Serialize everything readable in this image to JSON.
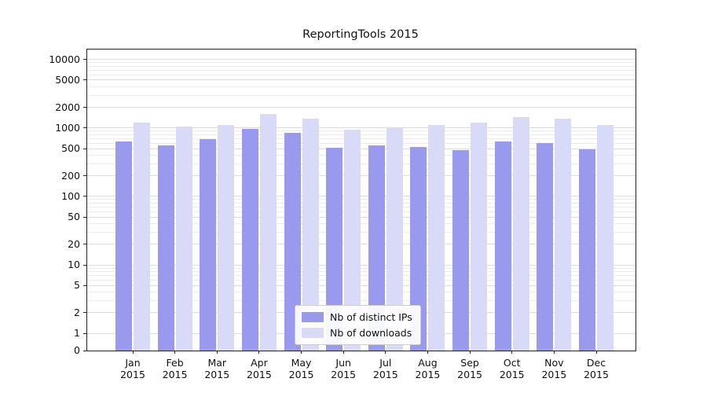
{
  "chart_data": {
    "type": "bar",
    "title": "ReportingTools 2015",
    "categories": [
      "Jan 2015",
      "Feb 2015",
      "Mar 2015",
      "Apr 2015",
      "May 2015",
      "Jun 2015",
      "Jul 2015",
      "Aug 2015",
      "Sep 2015",
      "Oct 2015",
      "Nov 2015",
      "Dec 2015"
    ],
    "series": [
      {
        "name": "Nb of distinct IPs",
        "color": "#9999ee",
        "values": [
          640,
          550,
          690,
          960,
          850,
          520,
          560,
          530,
          480,
          630,
          600,
          490
        ]
      },
      {
        "name": "Nb of downloads",
        "color": "#d9d9f8",
        "values": [
          1200,
          1050,
          1100,
          1600,
          1350,
          950,
          1000,
          1100,
          1200,
          1450,
          1350,
          1100
        ]
      }
    ],
    "yscale": "symlog",
    "ylim": [
      0,
      14000
    ],
    "ytick_labels": [
      0,
      1,
      2,
      5,
      10,
      20,
      50,
      100,
      200,
      500,
      1000,
      2000,
      5000,
      10000
    ],
    "minor_gridlines": [
      3,
      4,
      6,
      7,
      8,
      9,
      30,
      40,
      60,
      70,
      80,
      90,
      300,
      400,
      600,
      700,
      800,
      900,
      3000,
      4000,
      6000,
      7000,
      8000,
      9000
    ],
    "grid": true,
    "legend_position": "lower center",
    "xlabel": "",
    "ylabel": ""
  },
  "colors": {
    "axis": "#222222",
    "grid_major": "#dcdcdc",
    "grid_minor": "#ececec",
    "background": "#ffffff"
  }
}
